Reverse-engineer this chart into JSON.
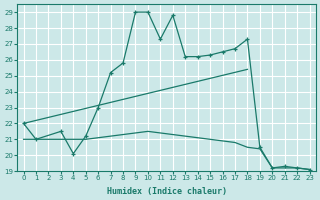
{
  "background_color": "#cce8e8",
  "grid_color": "#ffffff",
  "line_color": "#1a7a6a",
  "xlabel": "Humidex (Indice chaleur)",
  "xlim": [
    -0.5,
    23.5
  ],
  "ylim": [
    19,
    29.5
  ],
  "yticks": [
    19,
    20,
    21,
    22,
    23,
    24,
    25,
    26,
    27,
    28,
    29
  ],
  "xticks": [
    0,
    1,
    2,
    3,
    4,
    5,
    6,
    7,
    8,
    9,
    10,
    11,
    12,
    13,
    14,
    15,
    16,
    17,
    18,
    19,
    20,
    21,
    22,
    23
  ],
  "curve1_x": [
    0,
    1,
    3,
    4,
    5,
    6,
    7,
    8,
    9,
    10,
    11,
    12,
    13,
    14,
    15,
    16,
    17,
    18,
    19,
    20,
    21,
    22,
    23
  ],
  "curve1_y": [
    22,
    21,
    21.5,
    20.1,
    21.2,
    23.0,
    25.2,
    25.8,
    29.0,
    29.0,
    27.3,
    28.8,
    26.2,
    26.2,
    26.3,
    26.5,
    26.7,
    27.3,
    20.5,
    19.2,
    19.3,
    19.2,
    19.1
  ],
  "curve2_x": [
    0,
    18
  ],
  "curve2_y": [
    22,
    25.4
  ],
  "curve3_x": [
    0,
    5,
    6,
    7,
    8,
    9,
    10,
    11,
    12,
    13,
    14,
    15,
    16,
    17,
    18,
    19,
    20,
    21,
    22,
    23
  ],
  "curve3_y": [
    21,
    21.0,
    21.1,
    21.2,
    21.3,
    21.4,
    21.5,
    21.4,
    21.3,
    21.2,
    21.1,
    21.0,
    20.9,
    20.8,
    20.5,
    20.4,
    19.2,
    19.2,
    19.2,
    19.1
  ]
}
